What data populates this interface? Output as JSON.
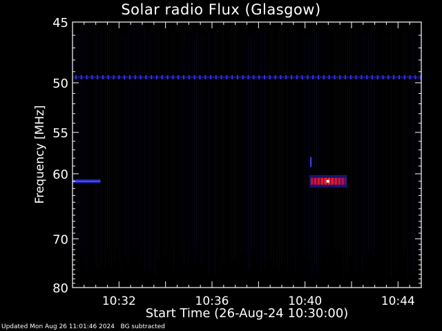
{
  "chart_data": {
    "type": "heatmap",
    "title": "Solar radio Flux (Glasgow)",
    "xlabel": "Start Time (26-Aug-24 10:30:00)",
    "ylabel": "Frequency [MHz]",
    "x_range_minutes": [
      10.0,
      45.0
    ],
    "y_range_mhz": [
      45,
      80
    ],
    "x_ticks": [
      {
        "minute": 32,
        "label": "10:32"
      },
      {
        "minute": 36,
        "label": "10:36"
      },
      {
        "minute": 40,
        "label": "10:40"
      },
      {
        "minute": 44,
        "label": "10:44"
      }
    ],
    "y_ticks": [
      {
        "value": 45,
        "label": "45"
      },
      {
        "value": 50,
        "label": "50"
      },
      {
        "value": 55,
        "label": "55"
      },
      {
        "value": 60,
        "label": "60"
      },
      {
        "value": 70,
        "label": "70"
      },
      {
        "value": 80,
        "label": "80"
      }
    ],
    "y_scale": "reciprocal",
    "colors": {
      "background": "#000000",
      "axes": "#ffffff",
      "low": "#0a0a30",
      "mid": "#2020c0",
      "high": "#ff2020",
      "peak": "#ffffff"
    },
    "features": [
      {
        "kind": "band",
        "freq_mhz": 49.5,
        "start_min": 30.0,
        "end_min": 45.0,
        "intensity": "mid"
      },
      {
        "kind": "burst",
        "freq_mhz": 61.0,
        "start_min": 30.0,
        "end_min": 31.2,
        "intensity": "mid"
      },
      {
        "kind": "burst",
        "freq_mhz": 61.0,
        "start_min": 40.25,
        "end_min": 41.75,
        "intensity": "high"
      }
    ]
  },
  "footer": {
    "updated": "Updated Mon Aug 26 11:01:46 2024",
    "note": "BG subtracted"
  }
}
